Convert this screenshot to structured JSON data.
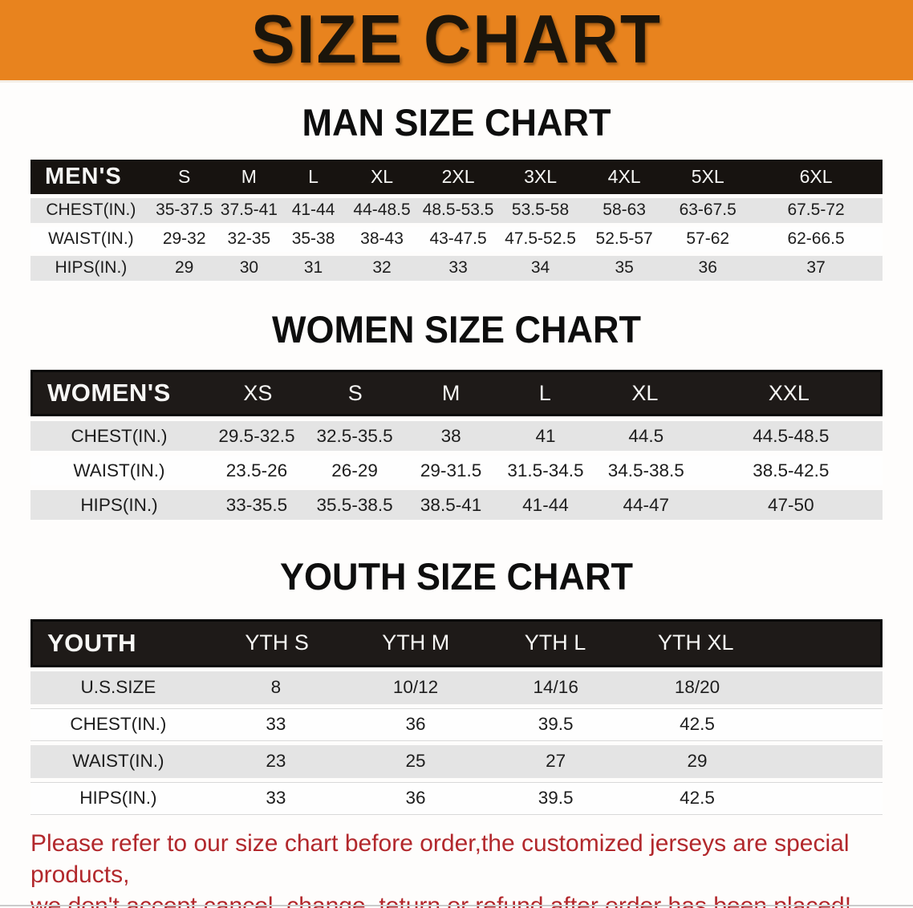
{
  "banner": {
    "title": "SIZE CHART"
  },
  "colors": {
    "banner_bg": "#e8831e",
    "bar_bg": "#171310",
    "stripe_bg": "#e4e4e4",
    "footer_color": "#b2282c"
  },
  "sections": [
    {
      "heading": "MAN SIZE CHART",
      "table": {
        "header_label": "MEN'S",
        "columns": [
          "S",
          "M",
          "L",
          "XL",
          "2XL",
          "3XL",
          "4XL",
          "5XL",
          "6XL"
        ],
        "rows": [
          {
            "label": "CHEST(IN.)",
            "values": [
              "35-37.5",
              "37.5-41",
              "41-44",
              "44-48.5",
              "48.5-53.5",
              "53.5-58",
              "58-63",
              "63-67.5",
              "67.5-72"
            ]
          },
          {
            "label": "WAIST(IN.)",
            "values": [
              "29-32",
              "32-35",
              "35-38",
              "38-43",
              "43-47.5",
              "47.5-52.5",
              "52.5-57",
              "57-62",
              "62-66.5"
            ]
          },
          {
            "label": "HIPS(IN.)",
            "values": [
              "29",
              "30",
              "31",
              "32",
              "33",
              "34",
              "35",
              "36",
              "37"
            ]
          }
        ]
      }
    },
    {
      "heading": "WOMEN SIZE CHART",
      "table": {
        "header_label": "WOMEN'S",
        "columns": [
          "XS",
          "S",
          "M",
          "L",
          "XL",
          "XXL"
        ],
        "rows": [
          {
            "label": "CHEST(IN.)",
            "values": [
              "29.5-32.5",
              "32.5-35.5",
              "38",
              "41",
              "44.5",
              "44.5-48.5"
            ]
          },
          {
            "label": "WAIST(IN.)",
            "values": [
              "23.5-26",
              "26-29",
              "29-31.5",
              "31.5-34.5",
              "34.5-38.5",
              "38.5-42.5"
            ]
          },
          {
            "label": "HIPS(IN.)",
            "values": [
              "33-35.5",
              "35.5-38.5",
              "38.5-41",
              "41-44",
              "44-47",
              "47-50"
            ]
          }
        ]
      }
    },
    {
      "heading": "YOUTH SIZE CHART",
      "table": {
        "header_label": "YOUTH",
        "columns": [
          "YTH S",
          "YTH M",
          "YTH L",
          "YTH XL"
        ],
        "rows": [
          {
            "label": "U.S.SIZE",
            "values": [
              "8",
              "10/12",
              "14/16",
              "18/20"
            ]
          },
          {
            "label": "CHEST(IN.)",
            "values": [
              "33",
              "36",
              "39.5",
              "42.5"
            ]
          },
          {
            "label": "WAIST(IN.)",
            "values": [
              "23",
              "25",
              "27",
              "29"
            ]
          },
          {
            "label": "HIPS(IN.)",
            "values": [
              "33",
              "36",
              "39.5",
              "42.5"
            ]
          }
        ]
      }
    }
  ],
  "footer": {
    "line1": "Please refer to our size chart before order,the customized jerseys are special products,",
    "line2": "we don't accept cancel, change, teturn or refund after order has been placed!"
  }
}
